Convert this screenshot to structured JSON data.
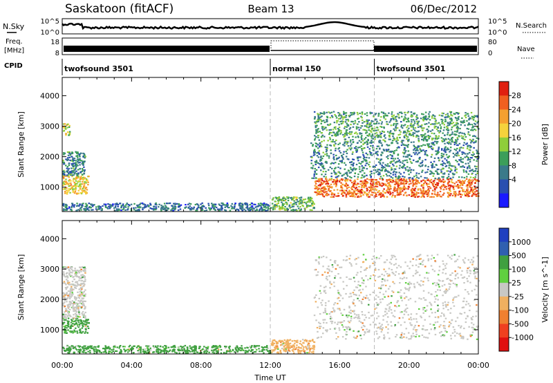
{
  "header": {
    "station": "Saskatoon (fitACF)",
    "beam": "Beam 13",
    "date": "06/Dec/2012"
  },
  "noise_panel": {
    "left_label": "N.Sky",
    "right_label": "N.Search",
    "left_ticks": [
      "10^5",
      "10^0"
    ],
    "right_ticks": [
      "10^5",
      "10^0"
    ]
  },
  "freq_panel": {
    "left_label_1": "Freq.",
    "left_label_2": "[MHz]",
    "right_label": "Nave",
    "left_ticks": [
      "18",
      "8"
    ],
    "right_ticks": [
      "80",
      "0"
    ]
  },
  "cpid": {
    "label": "CPID",
    "segments": [
      {
        "name": "twofsound 3501",
        "start_hour": 0,
        "end_hour": 12
      },
      {
        "name": "normal 150",
        "start_hour": 12,
        "end_hour": 18
      },
      {
        "name": "twofsound 3501",
        "start_hour": 18,
        "end_hour": 24
      }
    ]
  },
  "colors": {
    "power": [
      "#1a1aff",
      "#2a4fb0",
      "#3a7a8a",
      "#3c9e5a",
      "#8fce3a",
      "#f5d23c",
      "#f5a030",
      "#f06020",
      "#e02010"
    ],
    "velocity_grey": "#c8c8c4",
    "velocity": [
      "#2040c0",
      "#3060b0",
      "#40a040",
      "#60d040",
      "#c8c8c4",
      "#f0b060",
      "#f08030",
      "#f04020",
      "#e01010"
    ]
  },
  "chart_data": [
    {
      "type": "heatmap",
      "quantity": "Power",
      "ylabel": "Slant Range [km]",
      "xlim": [
        0,
        24
      ],
      "ylim": [
        200,
        4600
      ],
      "yticks": [
        1000,
        2000,
        3000,
        4000
      ],
      "colorbar": {
        "label": "Power [dB]",
        "ticks": [
          "4",
          "8",
          "12",
          "16",
          "20",
          "24",
          "28"
        ],
        "range": [
          0,
          32
        ]
      },
      "regions": [
        {
          "hours": [
            0.0,
            1.5
          ],
          "range_km": [
            800,
            1400
          ],
          "level_db": 20
        },
        {
          "hours": [
            0.0,
            1.3
          ],
          "range_km": [
            1400,
            2200
          ],
          "level_db": 10
        },
        {
          "hours": [
            0.0,
            0.4
          ],
          "range_km": [
            2700,
            3100
          ],
          "level_db": 18
        },
        {
          "hours": [
            0.0,
            12.0
          ],
          "range_km": [
            250,
            500
          ],
          "level_db": 8
        },
        {
          "hours": [
            12.0,
            14.5
          ],
          "range_km": [
            250,
            700
          ],
          "level_db": 14
        },
        {
          "hours": [
            14.5,
            24.0
          ],
          "range_km": [
            700,
            1300
          ],
          "level_db": 26
        },
        {
          "hours": [
            14.3,
            24.0
          ],
          "range_km": [
            1300,
            2500
          ],
          "level_db": 10
        },
        {
          "hours": [
            14.5,
            24.0
          ],
          "range_km": [
            2500,
            3500
          ],
          "level_db": 12
        }
      ]
    },
    {
      "type": "heatmap",
      "quantity": "Velocity",
      "ylabel": "Slant Range [km]",
      "xlabel": "Time UT",
      "xlim": [
        0,
        24
      ],
      "ylim": [
        200,
        4600
      ],
      "yticks": [
        1000,
        2000,
        3000,
        4000
      ],
      "xticks": [
        "00:00",
        "04:00",
        "08:00",
        "12:00",
        "16:00",
        "20:00",
        "00:00"
      ],
      "colorbar": {
        "label": "Velocity [m s^-1]",
        "ticks": [
          "1000",
          "500",
          "100",
          "25",
          "-25",
          "-100",
          "-500",
          "-1000"
        ]
      },
      "regions": [
        {
          "hours": [
            0.0,
            1.5
          ],
          "range_km": [
            900,
            1400
          ],
          "velocity": 100
        },
        {
          "hours": [
            0.0,
            1.3
          ],
          "range_km": [
            1400,
            3100
          ],
          "velocity": 0
        },
        {
          "hours": [
            0.0,
            12.0
          ],
          "range_km": [
            250,
            500
          ],
          "velocity": 100
        },
        {
          "hours": [
            12.0,
            14.5
          ],
          "range_km": [
            250,
            700
          ],
          "velocity": -100
        },
        {
          "hours": [
            14.5,
            24.0
          ],
          "range_km": [
            700,
            3500
          ],
          "velocity": 0
        }
      ]
    }
  ]
}
